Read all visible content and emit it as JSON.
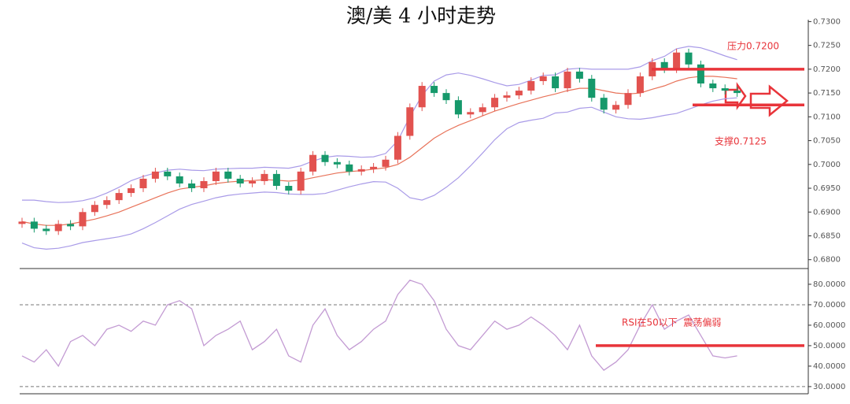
{
  "chart_data": [
    {
      "type": "candlestick",
      "title": "澳/美 4 小时走势",
      "open": [
        0.6875,
        0.688,
        0.6865,
        0.686,
        0.6875,
        0.687,
        0.69,
        0.6915,
        0.6925,
        0.694,
        0.695,
        0.697,
        0.6985,
        0.6975,
        0.696,
        0.695,
        0.6965,
        0.6985,
        0.697,
        0.696,
        0.6965,
        0.698,
        0.6955,
        0.6945,
        0.6985,
        0.702,
        0.7005,
        0.7,
        0.6985,
        0.699,
        0.6995,
        0.701,
        0.706,
        0.712,
        0.7165,
        0.715,
        0.7135,
        0.7105,
        0.711,
        0.712,
        0.714,
        0.7145,
        0.7155,
        0.7175,
        0.7185,
        0.716,
        0.7195,
        0.718,
        0.714,
        0.7115,
        0.7125,
        0.715,
        0.7185,
        0.7215,
        0.72,
        0.7235,
        0.721,
        0.717,
        0.716,
        0.7155
      ],
      "close": [
        0.688,
        0.6865,
        0.686,
        0.6875,
        0.687,
        0.69,
        0.6915,
        0.6925,
        0.694,
        0.695,
        0.697,
        0.6985,
        0.6975,
        0.696,
        0.695,
        0.6965,
        0.6985,
        0.697,
        0.696,
        0.6965,
        0.698,
        0.6955,
        0.6945,
        0.6985,
        0.702,
        0.7005,
        0.7,
        0.6985,
        0.699,
        0.6995,
        0.701,
        0.706,
        0.712,
        0.7165,
        0.715,
        0.7135,
        0.7105,
        0.711,
        0.712,
        0.714,
        0.7145,
        0.7155,
        0.7175,
        0.7185,
        0.716,
        0.7195,
        0.718,
        0.714,
        0.7115,
        0.7125,
        0.715,
        0.7185,
        0.7215,
        0.72,
        0.7235,
        0.721,
        0.717,
        0.716,
        0.7155,
        0.715
      ],
      "high": [
        0.6888,
        0.6888,
        0.6873,
        0.6883,
        0.6883,
        0.6908,
        0.6923,
        0.6933,
        0.6948,
        0.6958,
        0.6978,
        0.6993,
        0.6993,
        0.6983,
        0.6968,
        0.6973,
        0.6993,
        0.6993,
        0.6978,
        0.6973,
        0.6988,
        0.6988,
        0.6963,
        0.6993,
        0.7028,
        0.7028,
        0.7013,
        0.7008,
        0.6998,
        0.7003,
        0.7018,
        0.7068,
        0.7128,
        0.7173,
        0.7173,
        0.7158,
        0.7143,
        0.7118,
        0.7128,
        0.7148,
        0.7153,
        0.7163,
        0.7183,
        0.7193,
        0.7193,
        0.7203,
        0.7203,
        0.7188,
        0.7148,
        0.7133,
        0.7158,
        0.7193,
        0.7223,
        0.7223,
        0.7243,
        0.7243,
        0.7218,
        0.7178,
        0.7168,
        0.7163
      ],
      "low": [
        0.6867,
        0.6857,
        0.6852,
        0.6852,
        0.6862,
        0.6862,
        0.6892,
        0.6907,
        0.6917,
        0.6932,
        0.6942,
        0.6962,
        0.6967,
        0.6952,
        0.6942,
        0.6942,
        0.6957,
        0.6962,
        0.6952,
        0.6952,
        0.6957,
        0.6947,
        0.6937,
        0.6937,
        0.6977,
        0.6997,
        0.6992,
        0.6977,
        0.6977,
        0.6982,
        0.6987,
        0.7002,
        0.7052,
        0.7112,
        0.7142,
        0.7127,
        0.7097,
        0.7097,
        0.7102,
        0.7112,
        0.7132,
        0.7137,
        0.7147,
        0.7167,
        0.7152,
        0.7152,
        0.7172,
        0.7132,
        0.7107,
        0.7107,
        0.7117,
        0.7142,
        0.7177,
        0.7192,
        0.7192,
        0.7202,
        0.7162,
        0.7152,
        0.7147,
        0.7142
      ],
      "up_color": "#e2524f",
      "down_color": "#16996b",
      "overlays": [
        {
          "color": "#e8735a",
          "values": [
            0.688,
            0.6875,
            0.6872,
            0.6872,
            0.6875,
            0.688,
            0.6885,
            0.6892,
            0.69,
            0.691,
            0.692,
            0.693,
            0.694,
            0.6948,
            0.6952,
            0.6955,
            0.696,
            0.6963,
            0.6965,
            0.6966,
            0.6968,
            0.6967,
            0.6965,
            0.6967,
            0.6972,
            0.6977,
            0.6982,
            0.6985,
            0.6987,
            0.699,
            0.6993,
            0.7,
            0.7015,
            0.7035,
            0.7055,
            0.707,
            0.7082,
            0.7092,
            0.7102,
            0.7112,
            0.712,
            0.7128,
            0.7135,
            0.7142,
            0.7148,
            0.7155,
            0.716,
            0.716,
            0.7155,
            0.715,
            0.7148,
            0.715,
            0.7158,
            0.7165,
            0.7175,
            0.7182,
            0.7185,
            0.7185,
            0.7183,
            0.718
          ]
        },
        {
          "color": "#a99be8",
          "values": [
            0.6925,
            0.6925,
            0.6922,
            0.692,
            0.6921,
            0.6924,
            0.693,
            0.694,
            0.6952,
            0.6966,
            0.6975,
            0.6982,
            0.6988,
            0.699,
            0.6988,
            0.6987,
            0.699,
            0.6991,
            0.6992,
            0.6992,
            0.6994,
            0.6993,
            0.6992,
            0.6997,
            0.7007,
            0.7015,
            0.7018,
            0.7017,
            0.7015,
            0.7016,
            0.7023,
            0.705,
            0.71,
            0.7145,
            0.7175,
            0.7188,
            0.7192,
            0.7187,
            0.718,
            0.7172,
            0.7165,
            0.7168,
            0.7177,
            0.7187,
            0.7188,
            0.72,
            0.7202,
            0.72,
            0.72,
            0.72,
            0.72,
            0.7205,
            0.7218,
            0.7227,
            0.7243,
            0.7248,
            0.7245,
            0.7237,
            0.7228,
            0.722
          ]
        },
        {
          "color": "#a99be8",
          "values": [
            0.6835,
            0.6825,
            0.6822,
            0.6824,
            0.6829,
            0.6836,
            0.684,
            0.6844,
            0.6848,
            0.6854,
            0.6865,
            0.6878,
            0.6892,
            0.6906,
            0.6916,
            0.6923,
            0.693,
            0.6935,
            0.6938,
            0.694,
            0.6942,
            0.6941,
            0.6938,
            0.6937,
            0.6937,
            0.6939,
            0.6946,
            0.6953,
            0.6959,
            0.6964,
            0.6963,
            0.695,
            0.693,
            0.6925,
            0.6935,
            0.6952,
            0.6972,
            0.6997,
            0.7024,
            0.7052,
            0.7075,
            0.7088,
            0.7093,
            0.7097,
            0.7108,
            0.711,
            0.7118,
            0.712,
            0.711,
            0.71,
            0.7096,
            0.7095,
            0.7098,
            0.7103,
            0.7107,
            0.7116,
            0.7125,
            0.7133,
            0.7138,
            0.714
          ]
        }
      ],
      "ylim": [
        0.6783,
        0.7304
      ],
      "yticks": [
        {
          "value": 0.68,
          "label": "0.6800"
        },
        {
          "value": 0.685,
          "label": "0.6850"
        },
        {
          "value": 0.69,
          "label": "0.6900"
        },
        {
          "value": 0.695,
          "label": "0.6950"
        },
        {
          "value": 0.7,
          "label": "0.7000"
        },
        {
          "value": 0.705,
          "label": "0.7050"
        },
        {
          "value": 0.71,
          "label": "0.7100"
        },
        {
          "value": 0.715,
          "label": "0.7150"
        },
        {
          "value": 0.72,
          "label": "0.7200"
        },
        {
          "value": 0.725,
          "label": "0.7250"
        },
        {
          "value": 0.73,
          "label": "0.7300"
        }
      ],
      "annotations": [
        {
          "text": "压力0.7200",
          "value": 0.72,
          "color": "#e8343a"
        },
        {
          "text": "支撑0.7125",
          "value": 0.7125,
          "color": "#e8343a"
        }
      ]
    },
    {
      "type": "line",
      "values": [
        45,
        42,
        48,
        40,
        52,
        55,
        50,
        58,
        60,
        57,
        62,
        60,
        70,
        72,
        68,
        50,
        55,
        58,
        62,
        48,
        52,
        58,
        45,
        42,
        60,
        68,
        55,
        48,
        52,
        58,
        62,
        75,
        82,
        80,
        72,
        58,
        50,
        48,
        55,
        62,
        58,
        60,
        64,
        60,
        55,
        48,
        60,
        45,
        38,
        42,
        48,
        60,
        70,
        58,
        62,
        65,
        55,
        45,
        44,
        45
      ],
      "color": "#c39bd3",
      "ylim": [
        26.5,
        87.3
      ],
      "yticks": [
        {
          "value": 30,
          "label": "30.0000"
        },
        {
          "value": 40,
          "label": "40.0000"
        },
        {
          "value": 50,
          "label": "50.0000"
        },
        {
          "value": 60,
          "label": "60.0000"
        },
        {
          "value": 70,
          "label": "70.0000"
        },
        {
          "value": 80,
          "label": "80.0000"
        }
      ],
      "reference_lines": [
        70,
        30
      ],
      "annotations": [
        {
          "text": "RSI在50以下  震荡偏弱",
          "value": 50,
          "color": "#e8343a"
        }
      ]
    }
  ]
}
